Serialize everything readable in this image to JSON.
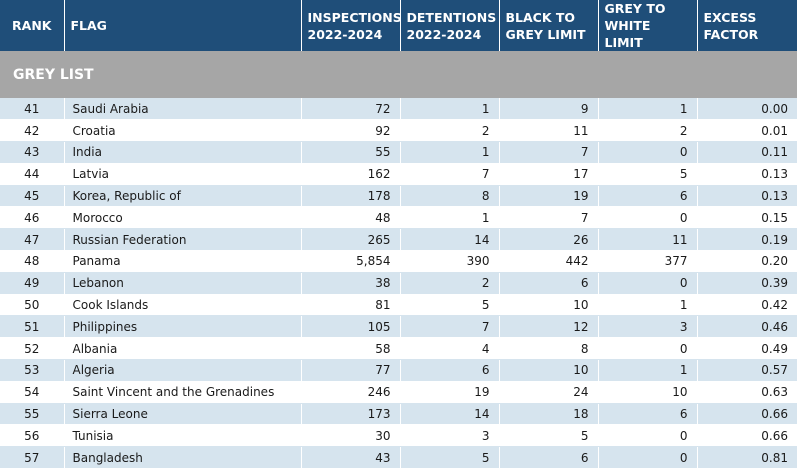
{
  "table": {
    "headers": {
      "rank": "RANK",
      "flag": "FLAG",
      "inspections": [
        "INSPECTIONS",
        "2022-2024"
      ],
      "detentions": [
        "DETENTIONS",
        "2022-2024"
      ],
      "black_to_grey": [
        "BLACK TO",
        "GREY LIMIT"
      ],
      "grey_to_white": [
        "GREY TO",
        "WHITE LIMIT"
      ],
      "excess_factor": [
        "EXCESS",
        "FACTOR"
      ]
    },
    "section_title": "GREY LIST",
    "rows": [
      {
        "rank": "41",
        "flag": "Saudi Arabia",
        "inspections": "72",
        "detentions": "1",
        "black_to_grey": "9",
        "grey_to_white": "1",
        "excess": "0.00"
      },
      {
        "rank": "42",
        "flag": "Croatia",
        "inspections": "92",
        "detentions": "2",
        "black_to_grey": "11",
        "grey_to_white": "2",
        "excess": "0.01"
      },
      {
        "rank": "43",
        "flag": "India",
        "inspections": "55",
        "detentions": "1",
        "black_to_grey": "7",
        "grey_to_white": "0",
        "excess": "0.11"
      },
      {
        "rank": "44",
        "flag": "Latvia",
        "inspections": "162",
        "detentions": "7",
        "black_to_grey": "17",
        "grey_to_white": "5",
        "excess": "0.13"
      },
      {
        "rank": "45",
        "flag": "Korea, Republic of",
        "inspections": "178",
        "detentions": "8",
        "black_to_grey": "19",
        "grey_to_white": "6",
        "excess": "0.13"
      },
      {
        "rank": "46",
        "flag": "Morocco",
        "inspections": "48",
        "detentions": "1",
        "black_to_grey": "7",
        "grey_to_white": "0",
        "excess": "0.15"
      },
      {
        "rank": "47",
        "flag": "Russian Federation",
        "inspections": "265",
        "detentions": "14",
        "black_to_grey": "26",
        "grey_to_white": "11",
        "excess": "0.19"
      },
      {
        "rank": "48",
        "flag": "Panama",
        "inspections": "5,854",
        "detentions": "390",
        "black_to_grey": "442",
        "grey_to_white": "377",
        "excess": "0.20"
      },
      {
        "rank": "49",
        "flag": "Lebanon",
        "inspections": "38",
        "detentions": "2",
        "black_to_grey": "6",
        "grey_to_white": "0",
        "excess": "0.39"
      },
      {
        "rank": "50",
        "flag": "Cook Islands",
        "inspections": "81",
        "detentions": "5",
        "black_to_grey": "10",
        "grey_to_white": "1",
        "excess": "0.42"
      },
      {
        "rank": "51",
        "flag": "Philippines",
        "inspections": "105",
        "detentions": "7",
        "black_to_grey": "12",
        "grey_to_white": "3",
        "excess": "0.46"
      },
      {
        "rank": "52",
        "flag": "Albania",
        "inspections": "58",
        "detentions": "4",
        "black_to_grey": "8",
        "grey_to_white": "0",
        "excess": "0.49"
      },
      {
        "rank": "53",
        "flag": "Algeria",
        "inspections": "77",
        "detentions": "6",
        "black_to_grey": "10",
        "grey_to_white": "1",
        "excess": "0.57"
      },
      {
        "rank": "54",
        "flag": "Saint Vincent and the Grenadines",
        "inspections": "246",
        "detentions": "19",
        "black_to_grey": "24",
        "grey_to_white": "10",
        "excess": "0.63"
      },
      {
        "rank": "55",
        "flag": "Sierra Leone",
        "inspections": "173",
        "detentions": "14",
        "black_to_grey": "18",
        "grey_to_white": "6",
        "excess": "0.66"
      },
      {
        "rank": "56",
        "flag": "Tunisia",
        "inspections": "30",
        "detentions": "3",
        "black_to_grey": "5",
        "grey_to_white": "0",
        "excess": "0.66"
      },
      {
        "rank": "57",
        "flag": "Bangladesh",
        "inspections": "43",
        "detentions": "5",
        "black_to_grey": "6",
        "grey_to_white": "0",
        "excess": "0.81"
      }
    ]
  },
  "colors": {
    "header_bg": "#1f4e79",
    "section_bg": "#a6a6a6",
    "row_stripe": "#d6e4ee"
  }
}
